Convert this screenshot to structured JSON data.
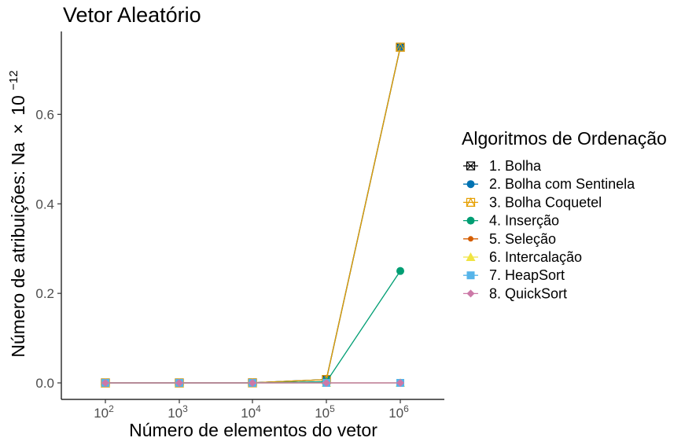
{
  "chart_data": {
    "type": "line",
    "title": "Vetor Aleatório",
    "xlabel": "Número de elementos do vetor",
    "ylabel": {
      "prefix": "Número de atribuições: Na",
      "times": "×",
      "base": "10",
      "exponent": "−12"
    },
    "x_scale": "log10",
    "x": [
      100,
      1000,
      10000,
      100000,
      1000000
    ],
    "x_ticks": [
      {
        "base": "10",
        "exp": "2"
      },
      {
        "base": "10",
        "exp": "3"
      },
      {
        "base": "10",
        "exp": "4"
      },
      {
        "base": "10",
        "exp": "5"
      },
      {
        "base": "10",
        "exp": "6"
      }
    ],
    "ylim": [
      -0.036,
      0.776
    ],
    "y_ticks": [
      "0.0",
      "0.2",
      "0.4",
      "0.6"
    ],
    "y_tick_values": [
      0,
      0.2,
      0.4,
      0.6
    ],
    "grid": false,
    "legend": {
      "title": "Algoritmos de Ordenação",
      "placement": "right"
    },
    "series": [
      {
        "name": "1. Bolha",
        "color": "#000000",
        "marker": "square-cross",
        "values": [
          0,
          0,
          0.0001,
          0.0075,
          0.75
        ]
      },
      {
        "name": "2. Bolha com Sentinela",
        "color": "#0072B2",
        "marker": "circle",
        "values": [
          0,
          0,
          0.0001,
          0.0075,
          0.75
        ]
      },
      {
        "name": "3. Bolha Coquetel",
        "color": "#E69F00",
        "marker": "square-triangle",
        "values": [
          0,
          0,
          0.0001,
          0.0075,
          0.75
        ]
      },
      {
        "name": "4. Inserção",
        "color": "#009E73",
        "marker": "circle",
        "values": [
          0,
          0,
          3e-05,
          0.0025,
          0.25
        ]
      },
      {
        "name": "5. Seleção",
        "color": "#D55E00",
        "marker": "small-circle",
        "values": [
          0,
          0,
          0,
          0,
          0
        ]
      },
      {
        "name": "6. Intercalação",
        "color": "#F0E442",
        "marker": "triangle",
        "values": [
          0,
          0,
          0,
          0,
          0
        ]
      },
      {
        "name": "7. HeapSort",
        "color": "#56B4E9",
        "marker": "square",
        "values": [
          0,
          0,
          0,
          0,
          0
        ]
      },
      {
        "name": "8. QuickSort",
        "color": "#CC79A7",
        "marker": "diamond",
        "values": [
          0,
          0,
          0,
          0,
          0
        ]
      }
    ]
  }
}
